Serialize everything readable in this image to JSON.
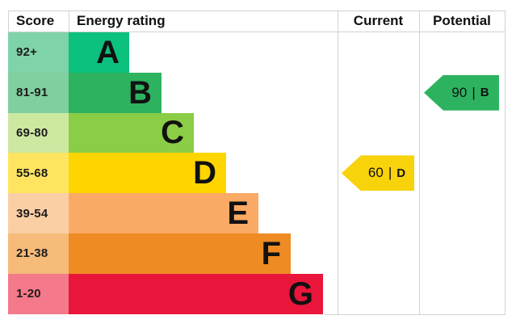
{
  "header": {
    "score": "Score",
    "energy_rating": "Energy rating",
    "current": "Current",
    "potential": "Potential"
  },
  "chart_data": {
    "type": "bar",
    "title": "",
    "description_visible_text_only": "EPC energy efficiency rating scale A-G with current and potential ratings",
    "bands": [
      {
        "letter": "A",
        "score_range": "92+",
        "bar_color": "#0bc17d",
        "score_cell_color": "#7fd3a9"
      },
      {
        "letter": "B",
        "score_range": "81-91",
        "bar_color": "#2db360",
        "score_cell_color": "#80cf9e"
      },
      {
        "letter": "C",
        "score_range": "69-80",
        "bar_color": "#8bcd46",
        "score_cell_color": "#cce8a1"
      },
      {
        "letter": "D",
        "score_range": "55-68",
        "bar_color": "#ffd500",
        "score_cell_color": "#ffe55f"
      },
      {
        "letter": "E",
        "score_range": "39-54",
        "bar_color": "#fbaa65",
        "score_cell_color": "#fbcfa4"
      },
      {
        "letter": "F",
        "score_range": "21-38",
        "bar_color": "#ee8b23",
        "score_cell_color": "#f6ba79"
      },
      {
        "letter": "G",
        "score_range": "1-20",
        "bar_color": "#e9153b",
        "score_cell_color": "#f4798b"
      }
    ],
    "current": {
      "value": 60,
      "band": "D",
      "band_index": 3,
      "arrow_color": "#f8d20b"
    },
    "potential": {
      "value": 90,
      "band": "B",
      "band_index": 1,
      "arrow_color": "#2db360"
    },
    "separator": "|",
    "grid_color": "#d2d2d2"
  }
}
